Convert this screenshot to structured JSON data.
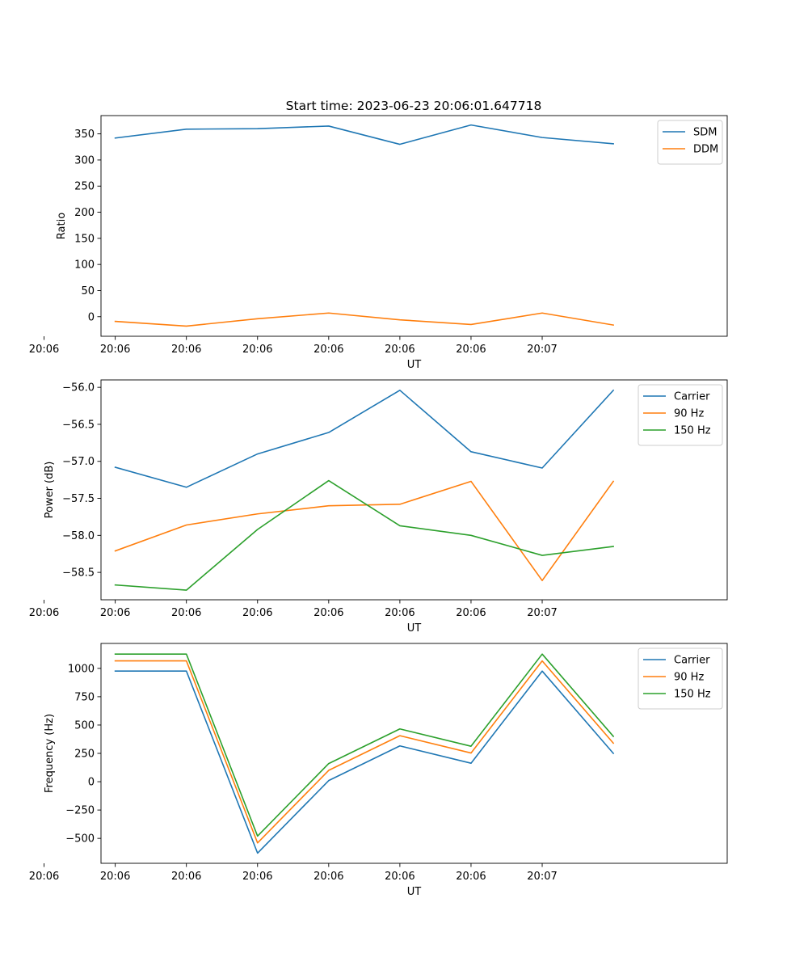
{
  "figure": {
    "title": "Start time: 2023-06-23 20:06:01.647718"
  },
  "chart_data": [
    {
      "type": "line",
      "title": "Start time: 2023-06-23 20:06:01.647718",
      "xlabel": "UT",
      "ylabel": "Ratio",
      "x_tick_labels": [
        "20:06",
        "20:06",
        "20:06",
        "20:06",
        "20:06",
        "20:06",
        "20:06",
        "20:07"
      ],
      "x": [
        1,
        2,
        3,
        4,
        5,
        6,
        7,
        8
      ],
      "xlim": [
        0.8,
        9.6
      ],
      "yticks": [
        0,
        50,
        100,
        150,
        200,
        250,
        300,
        350
      ],
      "ylim": [
        -37.5,
        385
      ],
      "legend_position": "upper right",
      "series": [
        {
          "name": "SDM",
          "color": "#1f77b4",
          "values": [
            342,
            359,
            360,
            365,
            330,
            367,
            343,
            331
          ]
        },
        {
          "name": "DDM",
          "color": "#ff7f0e",
          "values": [
            -9,
            -18,
            -4,
            7,
            -6,
            -15,
            7,
            -16
          ]
        }
      ]
    },
    {
      "type": "line",
      "xlabel": "UT",
      "ylabel": "Power (dB)",
      "x_tick_labels": [
        "20:06",
        "20:06",
        "20:06",
        "20:06",
        "20:06",
        "20:06",
        "20:06",
        "20:07"
      ],
      "x": [
        1,
        2,
        3,
        4,
        5,
        6,
        7,
        8
      ],
      "xlim": [
        0.8,
        9.6
      ],
      "yticks": [
        -58.5,
        -58.0,
        -57.5,
        -57.0,
        -56.5,
        -56.0
      ],
      "ytick_labels": [
        "−58.5",
        "−58.0",
        "−57.5",
        "−57.0",
        "−56.5",
        "−56.0"
      ],
      "ylim": [
        -58.87,
        -55.9
      ],
      "legend_position": "upper right",
      "series": [
        {
          "name": "Carrier",
          "color": "#1f77b4",
          "values": [
            -57.08,
            -57.35,
            -56.9,
            -56.61,
            -56.04,
            -56.87,
            -57.09,
            -56.04
          ]
        },
        {
          "name": "90 Hz",
          "color": "#ff7f0e",
          "values": [
            -58.21,
            -57.86,
            -57.71,
            -57.6,
            -57.58,
            -57.27,
            -58.61,
            -57.27
          ]
        },
        {
          "name": "150 Hz",
          "color": "#2ca02c",
          "values": [
            -58.67,
            -58.74,
            -57.92,
            -57.26,
            -57.87,
            -58.0,
            -58.27,
            -58.15
          ]
        }
      ]
    },
    {
      "type": "line",
      "xlabel": "UT",
      "ylabel": "Frequency (Hz)",
      "x_tick_labels": [
        "20:06",
        "20:06",
        "20:06",
        "20:06",
        "20:06",
        "20:06",
        "20:06",
        "20:07"
      ],
      "x": [
        1,
        2,
        3,
        4,
        5,
        6,
        7,
        8
      ],
      "xlim": [
        0.8,
        9.6
      ],
      "yticks": [
        -500,
        -250,
        0,
        250,
        500,
        750,
        1000
      ],
      "ytick_labels": [
        "−500",
        "−250",
        "0",
        "250",
        "500",
        "750",
        "1000"
      ],
      "ylim": [
        -720,
        1220
      ],
      "legend_position": "upper right",
      "series": [
        {
          "name": "Carrier",
          "color": "#1f77b4",
          "values": [
            976,
            976,
            -630,
            10,
            316,
            163,
            976,
            250
          ]
        },
        {
          "name": "90 Hz",
          "color": "#ff7f0e",
          "values": [
            1066,
            1066,
            -540,
            100,
            406,
            253,
            1066,
            340
          ]
        },
        {
          "name": "150 Hz",
          "color": "#2ca02c",
          "values": [
            1126,
            1126,
            -480,
            160,
            466,
            313,
            1126,
            400
          ]
        }
      ]
    }
  ]
}
